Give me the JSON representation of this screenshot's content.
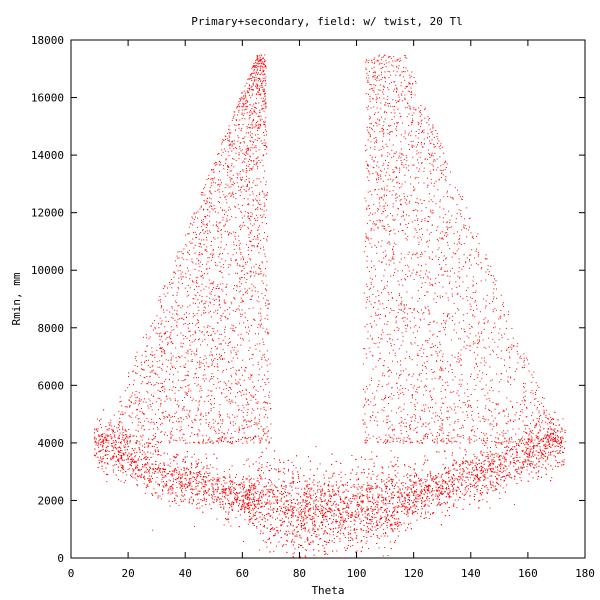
{
  "chart_data": {
    "type": "scatter",
    "title": "Primary+secondary, field: w/ twist, 20 Tl",
    "xlabel": "Theta",
    "ylabel": "Rmin, mm",
    "xlim": [
      0,
      180
    ],
    "ylim": [
      0,
      18000
    ],
    "xticks": [
      0,
      20,
      40,
      60,
      80,
      100,
      120,
      140,
      160,
      180
    ],
    "yticks": [
      0,
      2000,
      4000,
      6000,
      8000,
      10000,
      12000,
      14000,
      16000,
      18000
    ],
    "grid": false,
    "legend": "none",
    "series": [
      {
        "color": "#ff0000",
        "sample_points": [
          [
            10,
            4000
          ],
          [
            20,
            3800
          ],
          [
            30,
            3700
          ],
          [
            40,
            3300
          ],
          [
            50,
            2800
          ],
          [
            60,
            2200
          ],
          [
            70,
            1800
          ],
          [
            80,
            1700
          ],
          [
            90,
            1600
          ],
          [
            100,
            1700
          ],
          [
            110,
            2000
          ],
          [
            120,
            2500
          ],
          [
            130,
            3000
          ],
          [
            140,
            3400
          ],
          [
            150,
            3700
          ],
          [
            160,
            3900
          ],
          [
            170,
            4000
          ],
          [
            40,
            10000
          ],
          [
            50,
            14000
          ],
          [
            60,
            15000
          ],
          [
            65,
            16500
          ],
          [
            110,
            16500
          ],
          [
            120,
            14500
          ],
          [
            130,
            12000
          ],
          [
            140,
            9000
          ],
          [
            155,
            6500
          ]
        ]
      }
    ]
  }
}
